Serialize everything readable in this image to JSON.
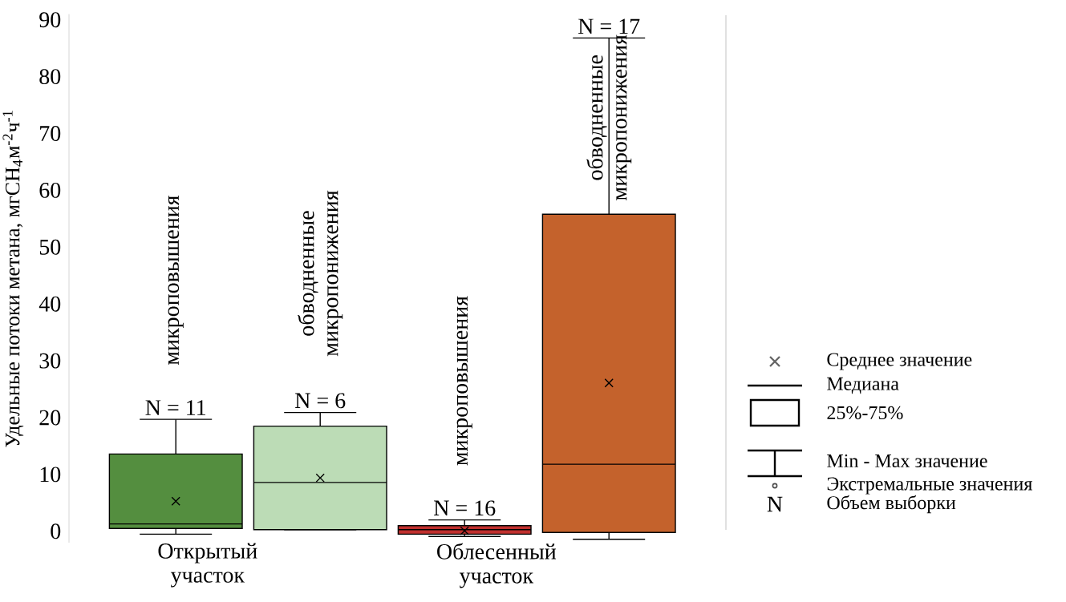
{
  "chart_data": {
    "type": "box",
    "ylabel": "Удельные потоки метана, мгCH$_{4}$м$^{-2}$ч$^{-1}$",
    "categories": [
      "микроповышения",
      "обводненные микропонижения",
      "микроповышения",
      "обводненные микропонижения"
    ],
    "colors": [
      "#548e3f",
      "#bcdcb6",
      "#c0302e",
      "#c4622c"
    ],
    "boxes": [
      {
        "low": -0.5,
        "q1": 0.5,
        "median": 1.3,
        "q3": 13.6,
        "high": 19.7,
        "mean": 5.3
      },
      {
        "low": 0.3,
        "q1": 0.3,
        "median": 8.6,
        "q3": 18.5,
        "high": 20.9,
        "mean": 9.4
      },
      {
        "low": -0.9,
        "q1": -0.5,
        "median": 0.3,
        "q3": 1.0,
        "high": 2.0,
        "mean": 0.1
      },
      {
        "low": -1.4,
        "q1": -0.2,
        "median": 11.8,
        "q3": 55.8,
        "high": 86.8,
        "mean": 26.1
      }
    ],
    "ylim": [
      -2,
      91
    ],
    "yticks": [
      0,
      10,
      20,
      30,
      40,
      50,
      60,
      70,
      80,
      90
    ],
    "marker": "cross",
    "annotations": [
      "N = 11",
      "N = 6",
      "N = 16",
      "N = 17",
      "Открытый участок",
      "Облесенный участок",
      "Среднее значение",
      "Медиана",
      "25%-75%",
      "Min - Max значение",
      "Экстремальные значения",
      "N",
      "Объем выборки"
    ]
  }
}
